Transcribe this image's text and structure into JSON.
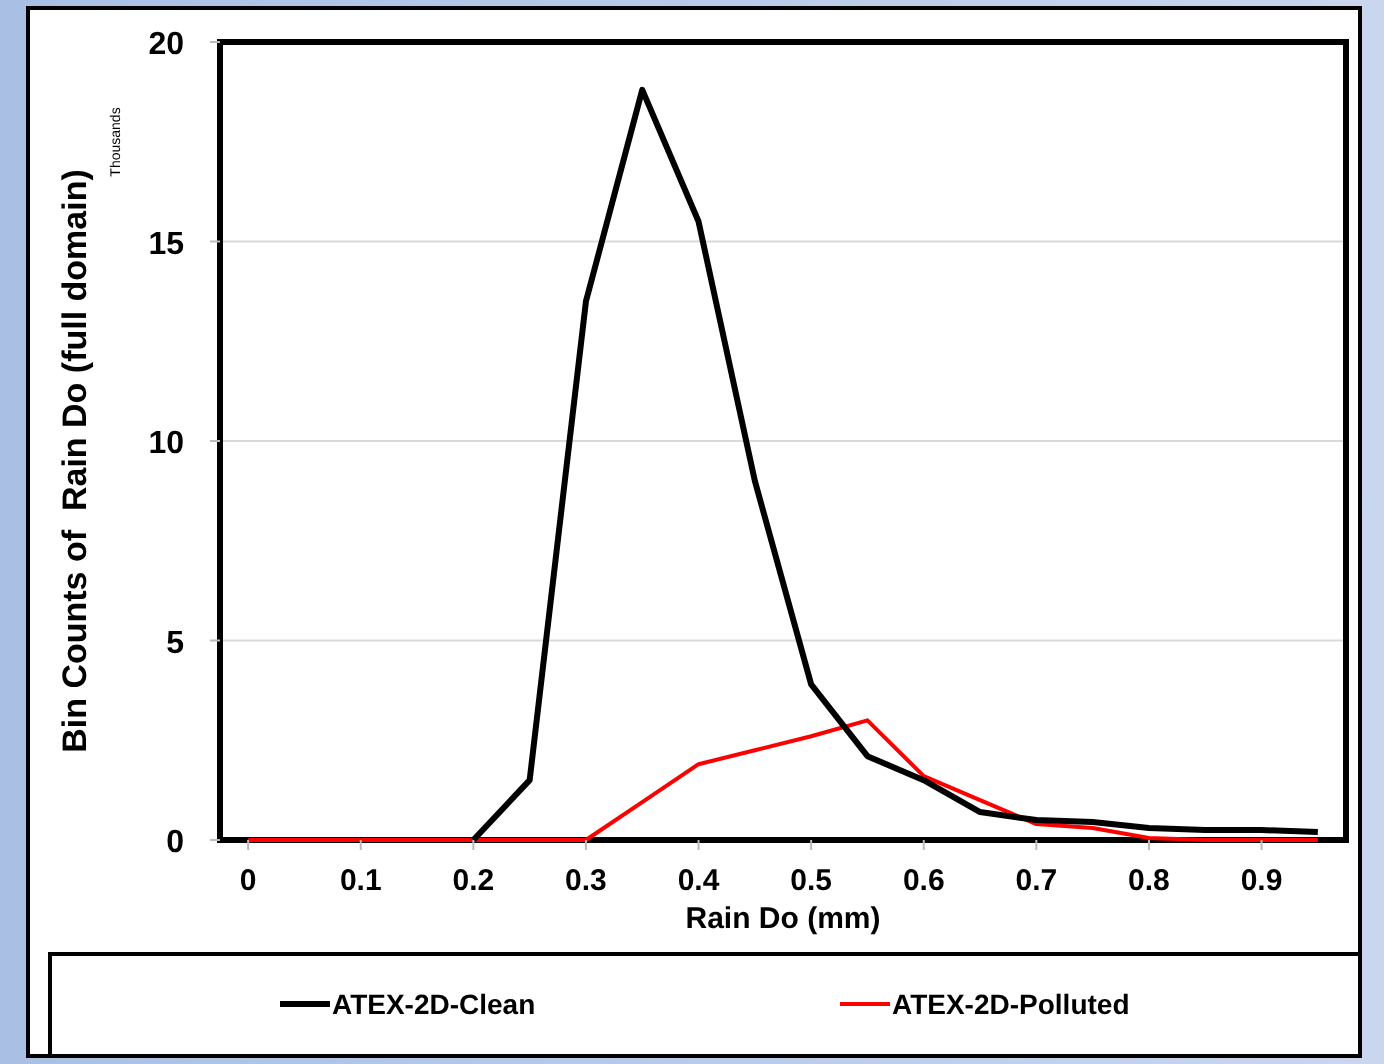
{
  "chart_data": {
    "type": "line",
    "xlabel": "Rain Do (mm)",
    "ylabel": "Bin Counts of  Rain Do (full domain)",
    "annotations": [
      "Thousands"
    ],
    "x": [
      0,
      0.05,
      0.1,
      0.15,
      0.2,
      0.25,
      0.3,
      0.35,
      0.4,
      0.45,
      0.5,
      0.55,
      0.6,
      0.65,
      0.7,
      0.75,
      0.8,
      0.85,
      0.9,
      0.95
    ],
    "series": [
      {
        "name": "ATEX-2D-Clean",
        "color": "#000000",
        "values": [
          null,
          null,
          null,
          null,
          0,
          1.5,
          13.5,
          18.8,
          15.5,
          9,
          3.9,
          2.1,
          1.5,
          0.7,
          0.5,
          0.45,
          0.3,
          0.25,
          0.25,
          0.2
        ]
      },
      {
        "name": "ATEX-2D-Polluted",
        "color": "#ff0000",
        "values": [
          0,
          0,
          0,
          0,
          0,
          0,
          0,
          0.95,
          1.9,
          2.25,
          2.6,
          3,
          1.6,
          1,
          0.4,
          0.3,
          0.05,
          0,
          0,
          0
        ]
      }
    ],
    "xlim": [
      -0.025,
      0.975
    ],
    "xticks": [
      0,
      0.1,
      0.2,
      0.3,
      0.4,
      0.5,
      0.6,
      0.7,
      0.8,
      0.9
    ],
    "ylim": [
      0,
      20
    ],
    "yticks": [
      0,
      5,
      10,
      15,
      20
    ],
    "grid": "y",
    "legend": "bottom",
    "marker": "none",
    "line_style": "solid"
  }
}
